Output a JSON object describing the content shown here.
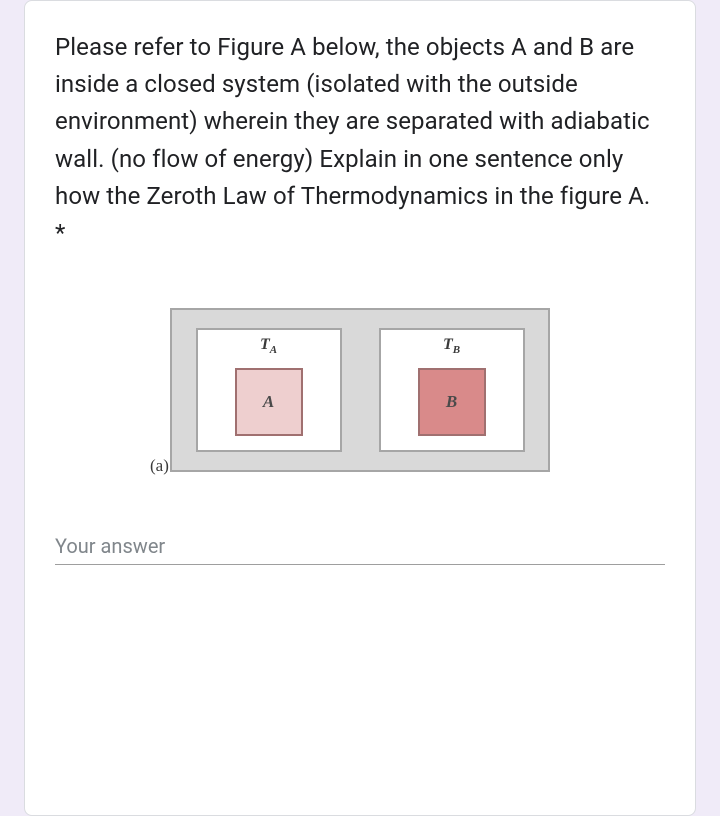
{
  "question": {
    "text": "Please refer to Figure A below, the objects A and B are inside a closed system (isolated with the outside environment) wherein they are separated with adiabatic wall. (no flow of energy) Explain in one sentence only how the Zeroth Law of Thermodynamics in the figure A.",
    "required_marker": " *"
  },
  "figure": {
    "caption": "(a)",
    "chamber_a": {
      "temp_main": "T",
      "temp_sub": "A",
      "object_label": "A",
      "object_color": "#eecfcf"
    },
    "chamber_b": {
      "temp_main": "T",
      "temp_sub": "B",
      "object_label": "B",
      "object_color": "#d98a8a"
    },
    "system_bg": "#d9d9d9",
    "border_color": "#a6a6a6"
  },
  "answer": {
    "placeholder": "Your answer",
    "value": ""
  }
}
